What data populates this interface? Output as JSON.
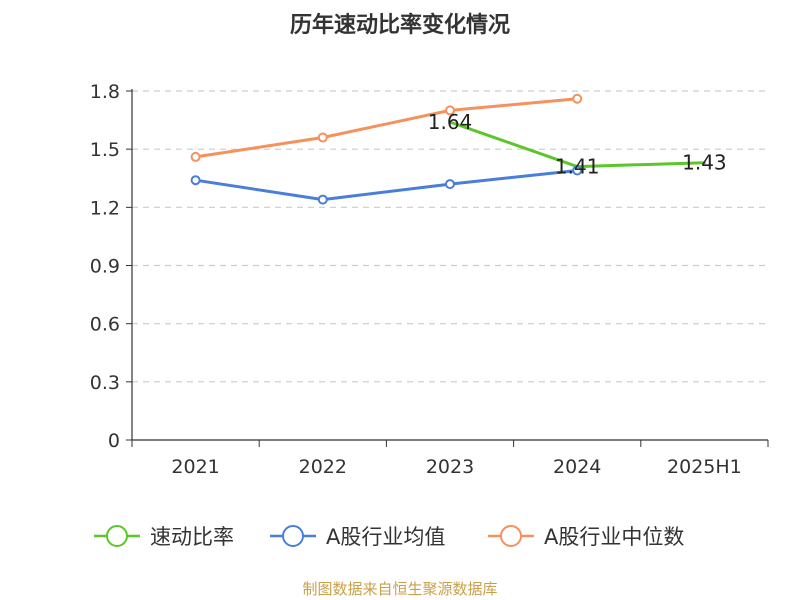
{
  "chart_data": {
    "type": "line",
    "title": "历年速动比率变化情况",
    "categories": [
      "2021",
      "2022",
      "2023",
      "2024",
      "2025H1"
    ],
    "y_ticks": [
      "0",
      "0.3",
      "0.6",
      "0.9",
      "1.2",
      "1.5",
      "1.8"
    ],
    "ylim": [
      0,
      1.8
    ],
    "grid": true,
    "legend_position": "bottom",
    "series": [
      {
        "name": "速动比率",
        "color": "#5cc52a",
        "values": [
          null,
          null,
          1.64,
          1.41,
          1.43
        ],
        "labels": [
          null,
          null,
          "1.64",
          "1.41",
          "1.43"
        ],
        "markers": false
      },
      {
        "name": "A股行业均值",
        "color": "#4a7fd9",
        "values": [
          1.34,
          1.24,
          1.32,
          1.39,
          null
        ],
        "markers": true
      },
      {
        "name": "A股行业中位数",
        "color": "#f5915c",
        "values": [
          1.46,
          1.56,
          1.7,
          1.76,
          null
        ],
        "markers": true
      }
    ]
  },
  "footer": {
    "source": "制图数据来自恒生聚源数据库"
  }
}
